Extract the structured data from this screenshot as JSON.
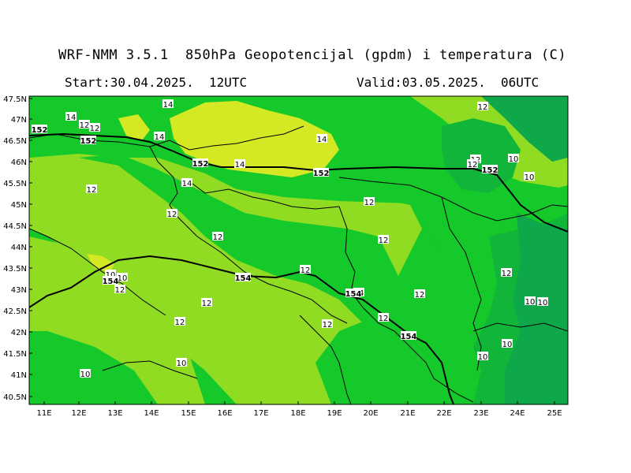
{
  "header": {
    "title": "WRF-NMM 3.5.1  850hPa Geopotencijal (gpdm) i temperatura (C)",
    "start": "Start:30.04.2025.  12UTC",
    "valid": "Valid:03.05.2025.  06UTC"
  },
  "axes": {
    "lat_labels": [
      "47.5N",
      "47N",
      "46.5N",
      "46N",
      "45.5N",
      "45N",
      "44.5N",
      "44N",
      "43.5N",
      "43N",
      "42.5N",
      "42N",
      "41.5N",
      "41N",
      "40.5N"
    ],
    "lon_labels": [
      "11E",
      "12E",
      "13E",
      "14E",
      "15E",
      "16E",
      "17E",
      "18E",
      "19E",
      "20E",
      "21E",
      "22E",
      "23E",
      "24E",
      "25E"
    ]
  },
  "colors": {
    "t10": "#11b53a",
    "t12": "#16c92a",
    "t14": "#8fdc22",
    "t16": "#d4e824",
    "dark": "#0ea84a"
  },
  "temperature_labels": [
    {
      "v": "14"
    },
    {
      "v": "14"
    },
    {
      "v": "12"
    },
    {
      "v": "12"
    },
    {
      "v": "14"
    },
    {
      "v": "14"
    },
    {
      "v": "14"
    },
    {
      "v": "14"
    },
    {
      "v": "12"
    },
    {
      "v": "12"
    },
    {
      "v": "12"
    },
    {
      "v": "12"
    },
    {
      "v": "12"
    },
    {
      "v": "12"
    },
    {
      "v": "12"
    },
    {
      "v": "12"
    },
    {
      "v": "14"
    },
    {
      "v": "12"
    },
    {
      "v": "12"
    },
    {
      "v": "12"
    },
    {
      "v": "12"
    },
    {
      "v": "12"
    },
    {
      "v": "12"
    },
    {
      "v": "12"
    },
    {
      "v": "12"
    },
    {
      "v": "10"
    },
    {
      "v": "10"
    },
    {
      "v": "10"
    },
    {
      "v": "10"
    },
    {
      "v": "10"
    },
    {
      "v": "10"
    },
    {
      "v": "10"
    },
    {
      "v": "10"
    },
    {
      "v": "10"
    },
    {
      "v": "10"
    }
  ],
  "geopotential_labels": [
    {
      "v": "152"
    },
    {
      "v": "152"
    },
    {
      "v": "152"
    },
    {
      "v": "152"
    },
    {
      "v": "152"
    },
    {
      "v": "154"
    },
    {
      "v": "154"
    },
    {
      "v": "154"
    },
    {
      "v": "154"
    }
  ]
}
